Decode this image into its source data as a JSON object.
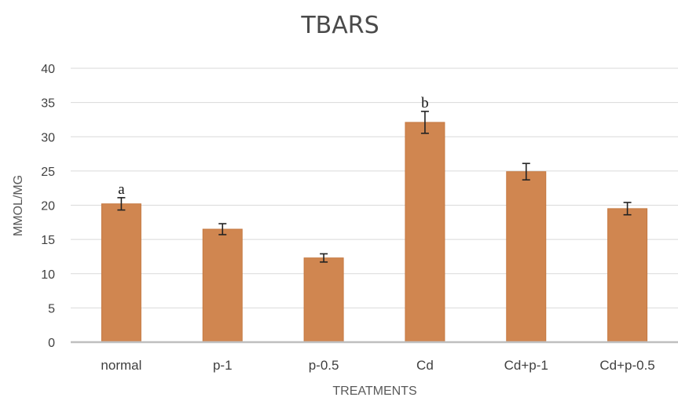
{
  "chart_data": {
    "type": "bar",
    "title": "TBARS",
    "xlabel": "TREATMENTS",
    "ylabel": "MMOL/MG",
    "ylim": [
      0,
      40
    ],
    "yticks": [
      0,
      5,
      10,
      15,
      20,
      25,
      30,
      35,
      40
    ],
    "grid": true,
    "legend": "none",
    "categories": [
      "normal",
      "p-1",
      "p-0.5",
      "Cd",
      "Cd+p-1",
      "Cd+p-0.5"
    ],
    "values": [
      20.2,
      16.5,
      12.3,
      32.1,
      24.9,
      19.5
    ],
    "errors": [
      0.9,
      0.8,
      0.6,
      1.6,
      1.2,
      0.9
    ],
    "annotations": [
      {
        "category": "normal",
        "text": "a"
      },
      {
        "category": "Cd",
        "text": "b"
      }
    ],
    "bar_color": "#D08650",
    "bar_edge_color": "#C67A43",
    "grid_color": "#D9D9D9",
    "axis_color": "#BFBFBF"
  }
}
